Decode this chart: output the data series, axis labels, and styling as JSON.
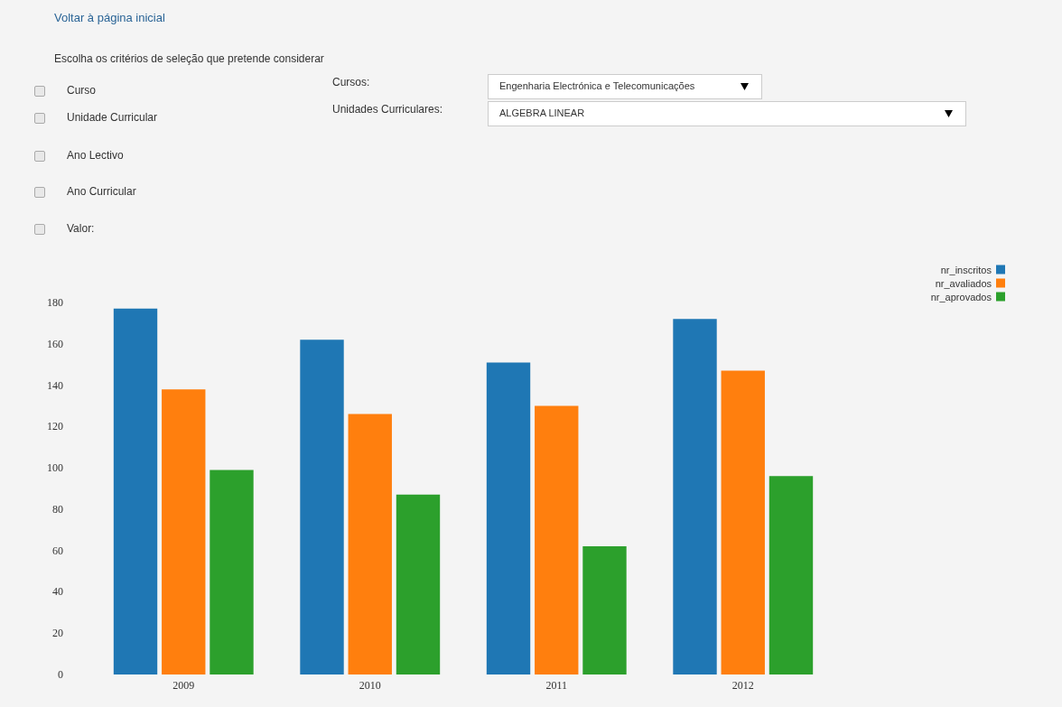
{
  "chart_data": {
    "type": "bar",
    "categories": [
      "2009",
      "2010",
      "2011",
      "2012"
    ],
    "series": [
      {
        "name": "nr_inscritos",
        "color": "#1f77b4",
        "values": [
          177,
          162,
          151,
          172
        ]
      },
      {
        "name": "nr_avaliados",
        "color": "#ff7f0e",
        "values": [
          138,
          126,
          130,
          147
        ]
      },
      {
        "name": "nr_aprovados",
        "color": "#2ca02c",
        "values": [
          99,
          87,
          62,
          96
        ]
      }
    ],
    "ylim": [
      0,
      180
    ],
    "yticks": [
      0,
      20,
      40,
      60,
      80,
      100,
      120,
      140,
      160,
      180
    ],
    "grid": false,
    "legend": "top right",
    "annotations": [
      "Voltar à página inicial",
      "Escolha os critérios de seleção que pretende considerar",
      "Curso",
      "Unidade Curricular",
      "Ano Lectivo",
      "Ano Curricular",
      "Valor:",
      "Cursos:",
      "Unidades Curriculares:",
      "Engenharia Electrónica e Telecomunicações",
      "ALGEBRA LINEAR"
    ]
  }
}
